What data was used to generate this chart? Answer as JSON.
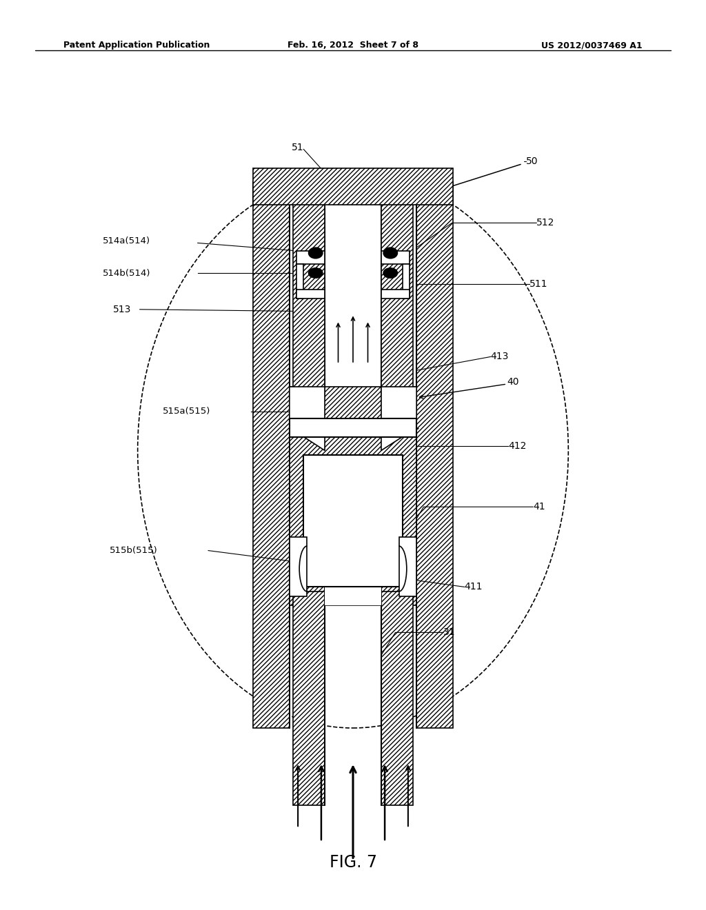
{
  "background_color": "#ffffff",
  "title": "FIG. 7",
  "header_left": "Patent Application Publication",
  "header_center": "Feb. 16, 2012  Sheet 7 of 8",
  "header_right": "US 2012/0037469 A1"
}
